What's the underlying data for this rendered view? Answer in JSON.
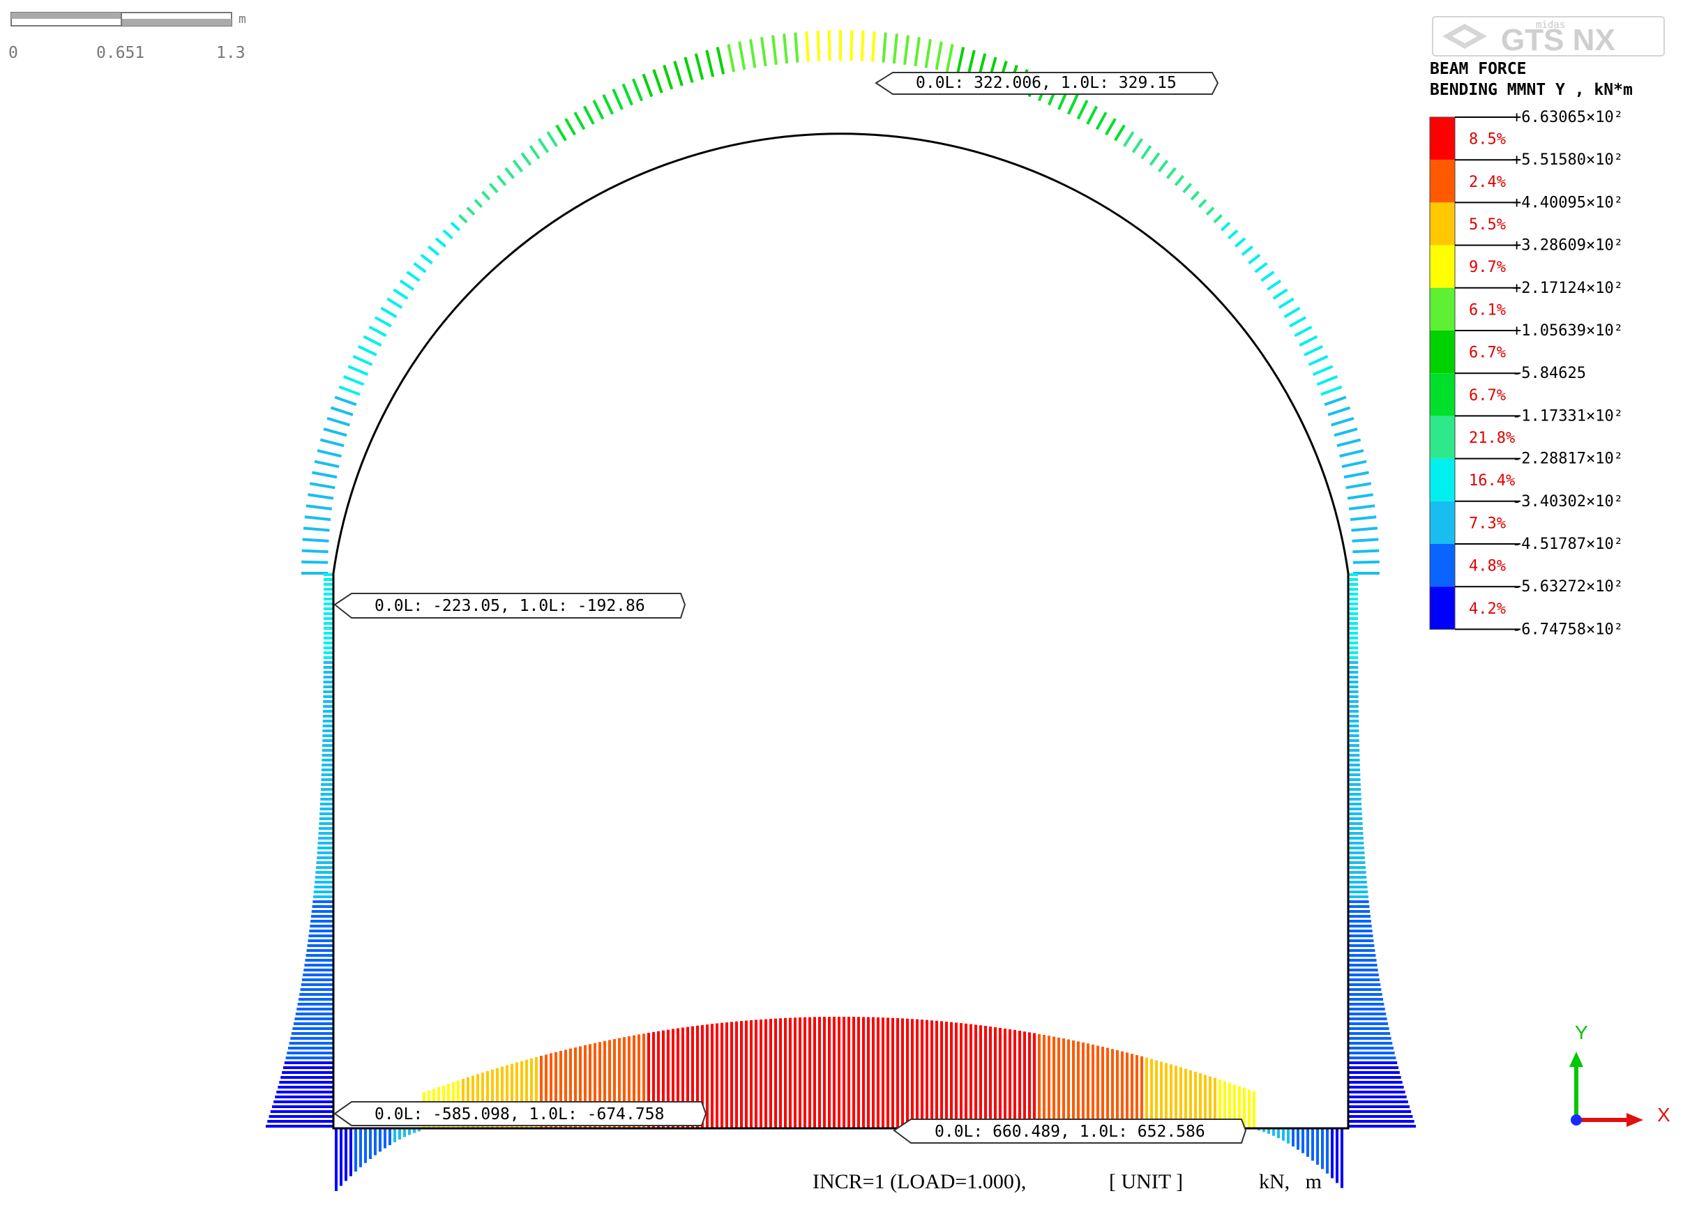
{
  "scale_bar": {
    "unit": "m",
    "ticks": [
      "0",
      "0.651",
      "1.3"
    ]
  },
  "logo": {
    "brand": "midas",
    "product": "GTS NX"
  },
  "legend": {
    "title_line1": "BEAM FORCE",
    "title_line2": "BENDING MMNT Y , kN*m",
    "levels": [
      "+6.63065×10²",
      "+5.51580×10²",
      "+4.40095×10²",
      "+3.28609×10²",
      "+2.17124×10²",
      "+1.05639×10²",
      "-5.84625",
      "-1.17331×10²",
      "-2.28817×10²",
      "-3.40302×10²",
      "-4.51787×10²",
      "-5.63272×10²",
      "-6.74758×10²"
    ],
    "bands": [
      {
        "color": "#ff0000",
        "percent": "8.5%"
      },
      {
        "color": "#ff5a00",
        "percent": "2.4%"
      },
      {
        "color": "#ffc800",
        "percent": "5.5%"
      },
      {
        "color": "#ffff00",
        "percent": "9.7%"
      },
      {
        "color": "#5ef032",
        "percent": "6.1%"
      },
      {
        "color": "#00d200",
        "percent": "6.7%"
      },
      {
        "color": "#00e02a",
        "percent": "6.7%"
      },
      {
        "color": "#2ee88c",
        "percent": "21.8%"
      },
      {
        "color": "#00f0f0",
        "percent": "16.4%"
      },
      {
        "color": "#18bef0",
        "percent": "7.3%"
      },
      {
        "color": "#0a64ff",
        "percent": "4.8%"
      },
      {
        "color": "#0000ff",
        "percent": "4.2%"
      }
    ]
  },
  "callouts": {
    "crown": "0.0L: 322.006, 1.0L: 329.15",
    "wall": "0.0L: -223.05, 1.0L: -192.86",
    "corner": "0.0L: -585.098, 1.0L: -674.758",
    "invert": "0.0L: 660.489, 1.0L: 652.586"
  },
  "status": {
    "increment": "INCR=1 (LOAD=1.000),",
    "unit_label": "[ UNIT ]",
    "units": "kN,   m"
  },
  "axes": {
    "y_label": "Y",
    "x_label": "X",
    "y_color": "#00c800",
    "x_color": "#e01010",
    "z_color": "#1a2aff"
  }
}
